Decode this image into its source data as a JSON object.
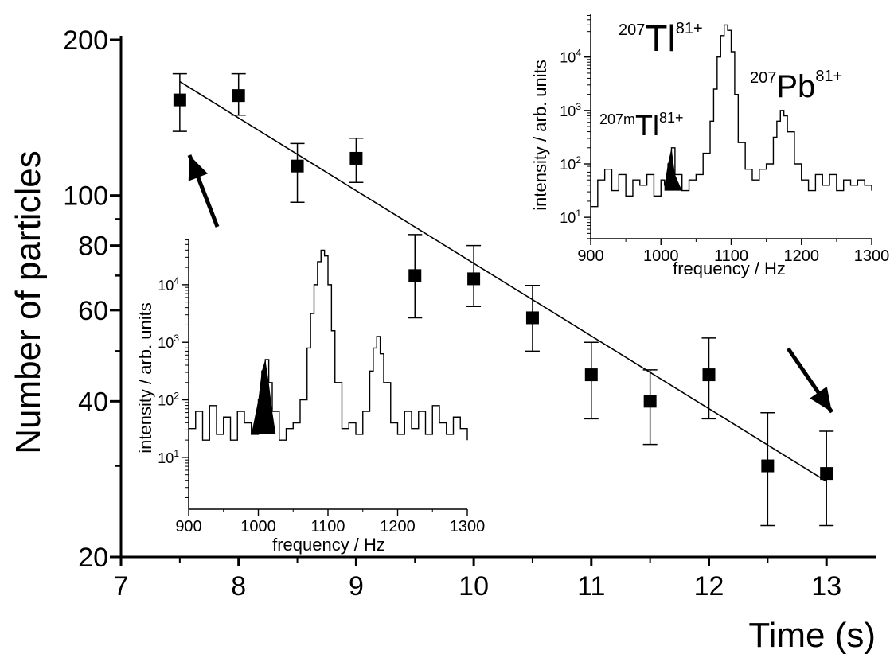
{
  "chart_data": {
    "type": "scatter",
    "xlabel": "Time (s)",
    "ylabel": "Number of particles",
    "xlim": [
      7,
      13.4
    ],
    "ylim": [
      20,
      200
    ],
    "yscale": "log",
    "xticks": [
      7,
      8,
      9,
      10,
      11,
      12,
      13
    ],
    "yticks_labeled": [
      20,
      40,
      60,
      80,
      100,
      200
    ],
    "yticks_minor": [
      30,
      50,
      70,
      90
    ],
    "points": [
      {
        "x": 7.5,
        "y": 153,
        "ylo": 133,
        "yhi": 172
      },
      {
        "x": 8.0,
        "y": 156,
        "ylo": 143,
        "yhi": 172
      },
      {
        "x": 8.5,
        "y": 114,
        "ylo": 97,
        "yhi": 126
      },
      {
        "x": 9.0,
        "y": 118,
        "ylo": 106,
        "yhi": 129
      },
      {
        "x": 9.5,
        "y": 70,
        "ylo": 58,
        "yhi": 84
      },
      {
        "x": 10.0,
        "y": 69,
        "ylo": 61,
        "yhi": 80
      },
      {
        "x": 10.5,
        "y": 58,
        "ylo": 50,
        "yhi": 67
      },
      {
        "x": 11.0,
        "y": 45,
        "ylo": 37,
        "yhi": 52
      },
      {
        "x": 11.5,
        "y": 40,
        "ylo": 33,
        "yhi": 46
      },
      {
        "x": 12.0,
        "y": 45,
        "ylo": 37,
        "yhi": 53
      },
      {
        "x": 12.5,
        "y": 30,
        "ylo": 23,
        "yhi": 38
      },
      {
        "x": 13.0,
        "y": 29,
        "ylo": 23,
        "yhi": 35
      }
    ],
    "fit": {
      "type": "exponential",
      "x": [
        7.5,
        13.0
      ],
      "y": [
        166,
        28
      ]
    },
    "insets": [
      {
        "id": "inset-lower",
        "xlabel": "frequency / Hz",
        "ylabel": "intensity / arb. units",
        "xlim": [
          900,
          1300
        ],
        "ylim_exp": [
          0.1,
          4.8
        ],
        "xticks": [
          900,
          1000,
          1100,
          1200,
          1300
        ],
        "yticks_exp": [
          1,
          2,
          3,
          4
        ],
        "ytick_base": "10",
        "spectrum": {
          "freq": [
            900,
            910,
            920,
            930,
            940,
            950,
            960,
            970,
            980,
            990,
            1000,
            1005,
            1010,
            1015,
            1020,
            1030,
            1040,
            1050,
            1060,
            1070,
            1075,
            1080,
            1085,
            1090,
            1095,
            1100,
            1105,
            1110,
            1120,
            1130,
            1140,
            1150,
            1160,
            1165,
            1170,
            1175,
            1180,
            1190,
            1200,
            1210,
            1220,
            1230,
            1240,
            1250,
            1260,
            1270,
            1280,
            1290,
            1300
          ],
          "log_intensity": [
            1.5,
            1.8,
            1.3,
            1.9,
            1.4,
            1.7,
            1.3,
            1.8,
            1.6,
            1.4,
            2.0,
            2.5,
            2.7,
            2.3,
            1.8,
            1.3,
            1.5,
            1.6,
            2.0,
            2.9,
            3.5,
            4.0,
            4.4,
            4.6,
            4.5,
            4.0,
            3.2,
            2.3,
            1.5,
            1.6,
            1.4,
            1.8,
            2.5,
            2.9,
            3.1,
            2.8,
            2.3,
            1.6,
            1.4,
            1.8,
            1.5,
            1.8,
            1.4,
            1.9,
            1.6,
            1.4,
            1.7,
            1.5,
            1.3
          ],
          "shaded_range": [
            985,
            1025
          ]
        }
      },
      {
        "id": "inset-upper",
        "xlabel": "frequency / Hz",
        "ylabel": "intensity / arb. units",
        "xlim": [
          900,
          1300
        ],
        "ylim_exp": [
          0.6,
          4.8
        ],
        "xticks": [
          900,
          1000,
          1100,
          1200,
          1300
        ],
        "yticks_exp": [
          1,
          2,
          3,
          4
        ],
        "ytick_base": "10",
        "spectrum": {
          "freq": [
            900,
            910,
            920,
            930,
            940,
            950,
            960,
            970,
            980,
            990,
            1000,
            1005,
            1010,
            1015,
            1020,
            1030,
            1040,
            1050,
            1060,
            1070,
            1075,
            1080,
            1085,
            1090,
            1095,
            1100,
            1105,
            1110,
            1120,
            1130,
            1140,
            1150,
            1160,
            1165,
            1170,
            1175,
            1180,
            1190,
            1200,
            1210,
            1220,
            1230,
            1240,
            1250,
            1260,
            1270,
            1280,
            1290,
            1300
          ],
          "log_intensity": [
            1.2,
            1.7,
            1.9,
            1.5,
            1.8,
            1.4,
            1.7,
            1.6,
            1.8,
            1.4,
            1.7,
            1.6,
            2.0,
            2.3,
            1.8,
            1.5,
            1.7,
            1.8,
            2.2,
            2.8,
            3.4,
            4.0,
            4.4,
            4.6,
            4.5,
            4.1,
            3.3,
            2.4,
            1.9,
            1.7,
            1.9,
            2.0,
            2.5,
            2.8,
            3.0,
            2.9,
            2.6,
            2.0,
            1.7,
            1.5,
            1.8,
            1.6,
            1.8,
            1.5,
            1.7,
            1.6,
            1.7,
            1.6,
            1.5
          ],
          "shaded_range": [
            1005,
            1030
          ]
        },
        "annotations": [
          {
            "id": "tl207",
            "sup": "207",
            "main": "Tl",
            "sup2": "81+"
          },
          {
            "id": "pb207",
            "sup": "207",
            "main": "Pb",
            "sup2": "81+"
          },
          {
            "id": "tl207m",
            "sup": "207m",
            "main": "Tl",
            "sup2": "81+"
          }
        ]
      }
    ],
    "arrows": [
      "points to x=7.5 data point",
      "points to x=13 data point"
    ]
  }
}
